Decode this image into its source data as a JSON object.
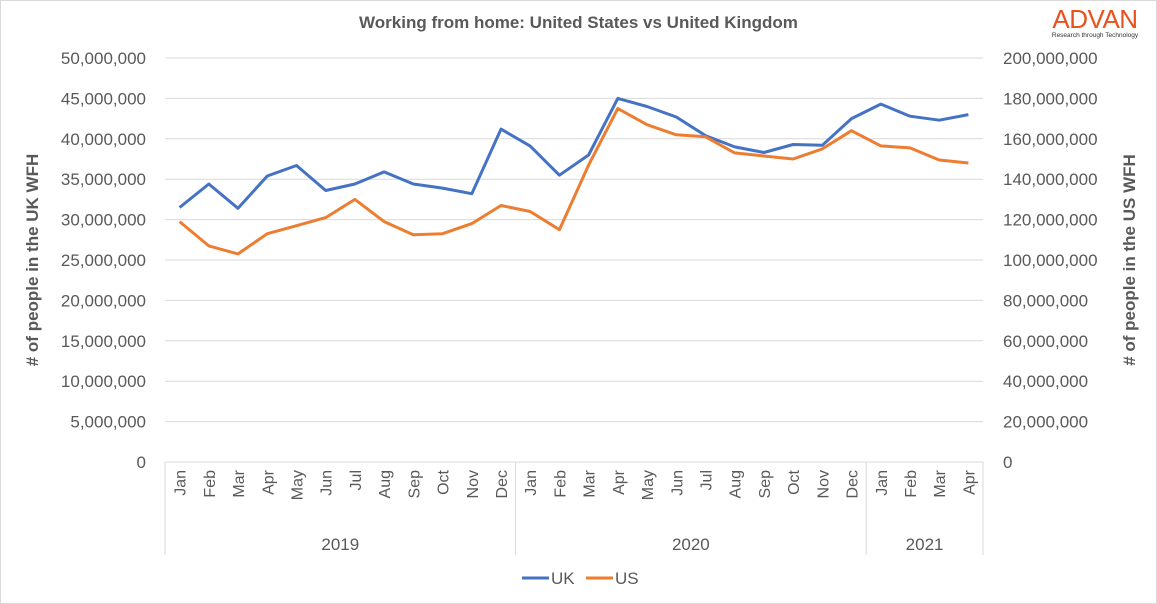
{
  "chart_data": {
    "type": "line",
    "title": "Working from home: United States vs United Kingdom",
    "logo": {
      "name": "ADVAN",
      "tagline": "Research through Technology",
      "color": "#e8521f"
    },
    "xlabel": "",
    "ylabel": "# of people in the UK WFH",
    "y2label": "# of people in the US WFH",
    "ylim": [
      0,
      50000000
    ],
    "y2lim": [
      0,
      200000000
    ],
    "grid": true,
    "legend_position": "bottom",
    "yticks": [
      "0",
      "5,000,000",
      "10,000,000",
      "15,000,000",
      "20,000,000",
      "25,000,000",
      "30,000,000",
      "35,000,000",
      "40,000,000",
      "45,000,000",
      "50,000,000"
    ],
    "y2ticks": [
      "0",
      "20,000,000",
      "40,000,000",
      "60,000,000",
      "80,000,000",
      "100,000,000",
      "120,000,000",
      "140,000,000",
      "160,000,000",
      "180,000,000",
      "200,000,000"
    ],
    "categories": [
      "Jan",
      "Feb",
      "Mar",
      "Apr",
      "May",
      "Jun",
      "Jul",
      "Aug",
      "Sep",
      "Oct",
      "Nov",
      "Dec",
      "Jan",
      "Feb",
      "Mar",
      "Apr",
      "May",
      "Jun",
      "Jul",
      "Aug",
      "Sep",
      "Oct",
      "Nov",
      "Dec",
      "Jan",
      "Feb",
      "Mar",
      "Apr"
    ],
    "groups": [
      {
        "label": "2019",
        "count": 12
      },
      {
        "label": "2020",
        "count": 12
      },
      {
        "label": "2021",
        "count": 4
      }
    ],
    "series": [
      {
        "name": "UK",
        "axis": "left",
        "color": "#4472c4",
        "values": [
          31500000,
          34400000,
          31400000,
          35400000,
          36700000,
          33600000,
          34400000,
          35900000,
          34400000,
          33900000,
          33200000,
          41200000,
          39100000,
          35500000,
          38000000,
          45000000,
          44000000,
          42700000,
          40400000,
          39000000,
          38300000,
          39300000,
          39200000,
          42500000,
          44300000,
          42800000,
          42300000,
          43000000
        ]
      },
      {
        "name": "US",
        "axis": "right",
        "color": "#ed7d31",
        "values": [
          119000000,
          107000000,
          103000000,
          113000000,
          117000000,
          121000000,
          130000000,
          119000000,
          112500000,
          113000000,
          118000000,
          127000000,
          124000000,
          115000000,
          147000000,
          175000000,
          167000000,
          162000000,
          161000000,
          153000000,
          151500000,
          150000000,
          155000000,
          164000000,
          156500000,
          155500000,
          149500000,
          148000000
        ]
      }
    ]
  }
}
